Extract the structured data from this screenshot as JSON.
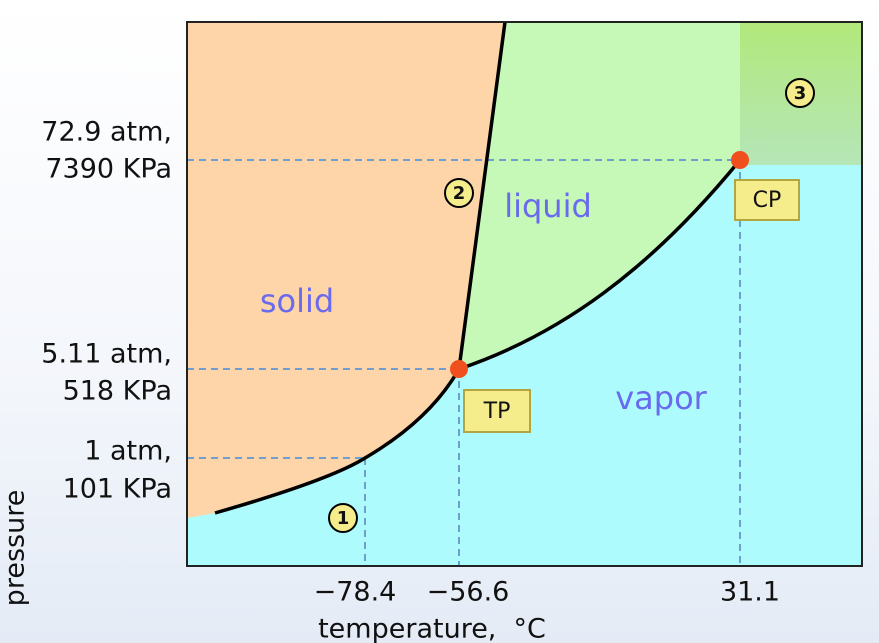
{
  "axes": {
    "y_title": "pressure",
    "x_title": "temperature,  °C",
    "y_labels": [
      [
        "72.9 atm,",
        "7390 KPa"
      ],
      [
        "5.11 atm,",
        "518 KPa"
      ],
      [
        "1 atm,",
        "101 KPa"
      ]
    ],
    "x_labels": [
      "−78.4",
      "−56.6",
      "31.1"
    ]
  },
  "regions": [
    "solid",
    "liquid",
    "vapor"
  ],
  "points": [
    "TP",
    "CP"
  ],
  "markers": [
    "1",
    "2",
    "3"
  ]
}
